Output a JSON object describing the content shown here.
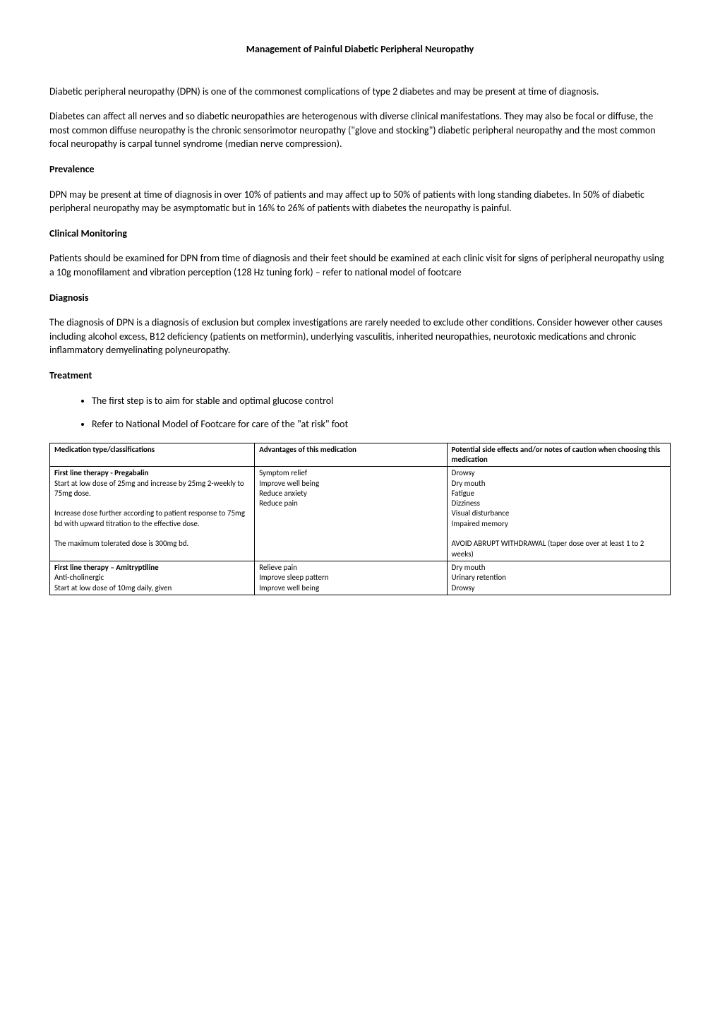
{
  "title": "Management of Painful Diabetic Peripheral Neuropathy",
  "intro": {
    "p1": "Diabetic peripheral neuropathy (DPN) is one of the commonest complications of type 2 diabetes and may be present at time of diagnosis.",
    "p2": "Diabetes can affect all nerves and so diabetic neuropathies are heterogenous with diverse clinical manifestations.  They may also be focal or diffuse, the most common diffuse neuropathy is the chronic sensorimotor neuropathy (\"glove and stocking\") diabetic peripheral neuropathy and the most common focal neuropathy is carpal tunnel syndrome (median nerve compression)."
  },
  "prevalence": {
    "heading": "Prevalence",
    "p1": "DPN may be present at time of diagnosis in over 10% of patients and may affect up to 50% of patients with long standing diabetes.  In 50% of diabetic peripheral neuropathy may be asymptomatic but in 16% to 26% of patients with diabetes the neuropathy is painful."
  },
  "monitoring": {
    "heading": "Clinical Monitoring",
    "p1": "Patients should be examined for DPN from time of diagnosis and their feet should be examined at each clinic visit for signs of peripheral neuropathy using a 10g monofilament and vibration perception (128 Hz tuning fork) – refer to national model of footcare"
  },
  "diagnosis": {
    "heading": "Diagnosis",
    "p1": "The diagnosis of DPN is a diagnosis of exclusion but complex investigations are rarely needed to exclude other conditions. Consider however other causes including alcohol excess, B12 deficiency (patients on metformin), underlying vasculitis, inherited neuropathies, neurotoxic medications and chronic inflammatory demyelinating polyneuropathy."
  },
  "treatment": {
    "heading": "Treatment",
    "bullets": [
      "The first step is to aim for stable and optimal glucose control",
      "Refer to National Model of Footcare for care of the \"at risk\" foot"
    ]
  },
  "table": {
    "type": "table",
    "columns": [
      "Medication type/classifications",
      "Advantages of this medication",
      "Potential side effects and/or notes of caution when choosing this medication"
    ],
    "column_widths": [
      "33%",
      "31%",
      "36%"
    ],
    "border_color": "#000000",
    "font_size": 11,
    "rows": [
      {
        "col1_bold": "First line therapy -  Pregabalin",
        "col1_rest": "Start at low dose of 25mg and increase by 25mg 2-weekly to 75mg dose.\n\nIncrease dose further according to patient response to 75mg bd with upward titration to the effective dose.\n\nThe maximum tolerated dose is 300mg bd.",
        "col2": "Symptom relief\nImprove well being\nReduce anxiety\nReduce pain",
        "col3": "Drowsy\nDry mouth\nFatigue\nDizziness\nVisual disturbance\nImpaired memory\n\nAVOID ABRUPT WITHDRAWAL (taper dose over at least 1 to 2 weeks)"
      },
      {
        "col1_bold": "First line therapy – Amitryptiline",
        "col1_rest": "Anti-cholinergic\nStart at low dose of 10mg daily, given",
        "col2": "Relieve pain\nImprove sleep pattern\nImprove well being",
        "col3": "Dry mouth\nUrinary retention\nDrowsy"
      }
    ]
  },
  "colors": {
    "text": "#000000",
    "background": "#ffffff",
    "border": "#000000"
  }
}
